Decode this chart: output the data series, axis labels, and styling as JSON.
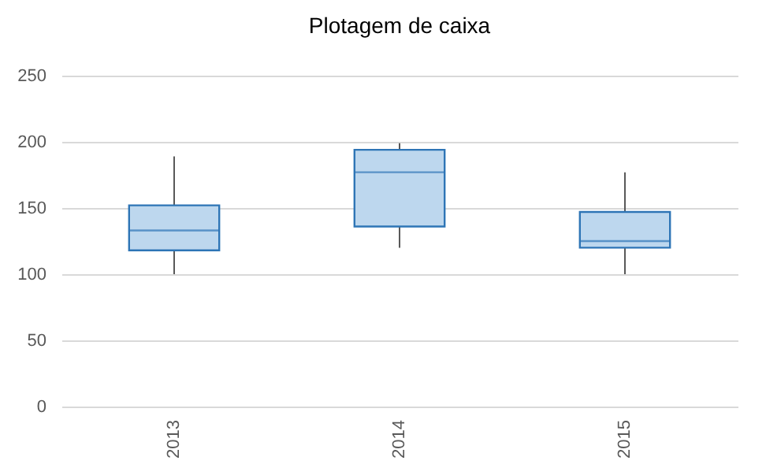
{
  "chart_data": {
    "type": "box",
    "title": "Plotagem de caixa",
    "categories": [
      "2013",
      "2014",
      "2015"
    ],
    "boxes": [
      {
        "low": 100,
        "q1": 118,
        "median": 133,
        "q3": 152,
        "high": 189
      },
      {
        "low": 120,
        "q1": 136,
        "median": 177,
        "q3": 194,
        "high": 199
      },
      {
        "low": 100,
        "q1": 120,
        "median": 125,
        "q3": 147,
        "high": 177
      }
    ],
    "color": "#bdd7ee",
    "ylim": [
      0,
      250
    ],
    "yticks": [
      0,
      50,
      100,
      150,
      200,
      250
    ],
    "grid": "y"
  }
}
